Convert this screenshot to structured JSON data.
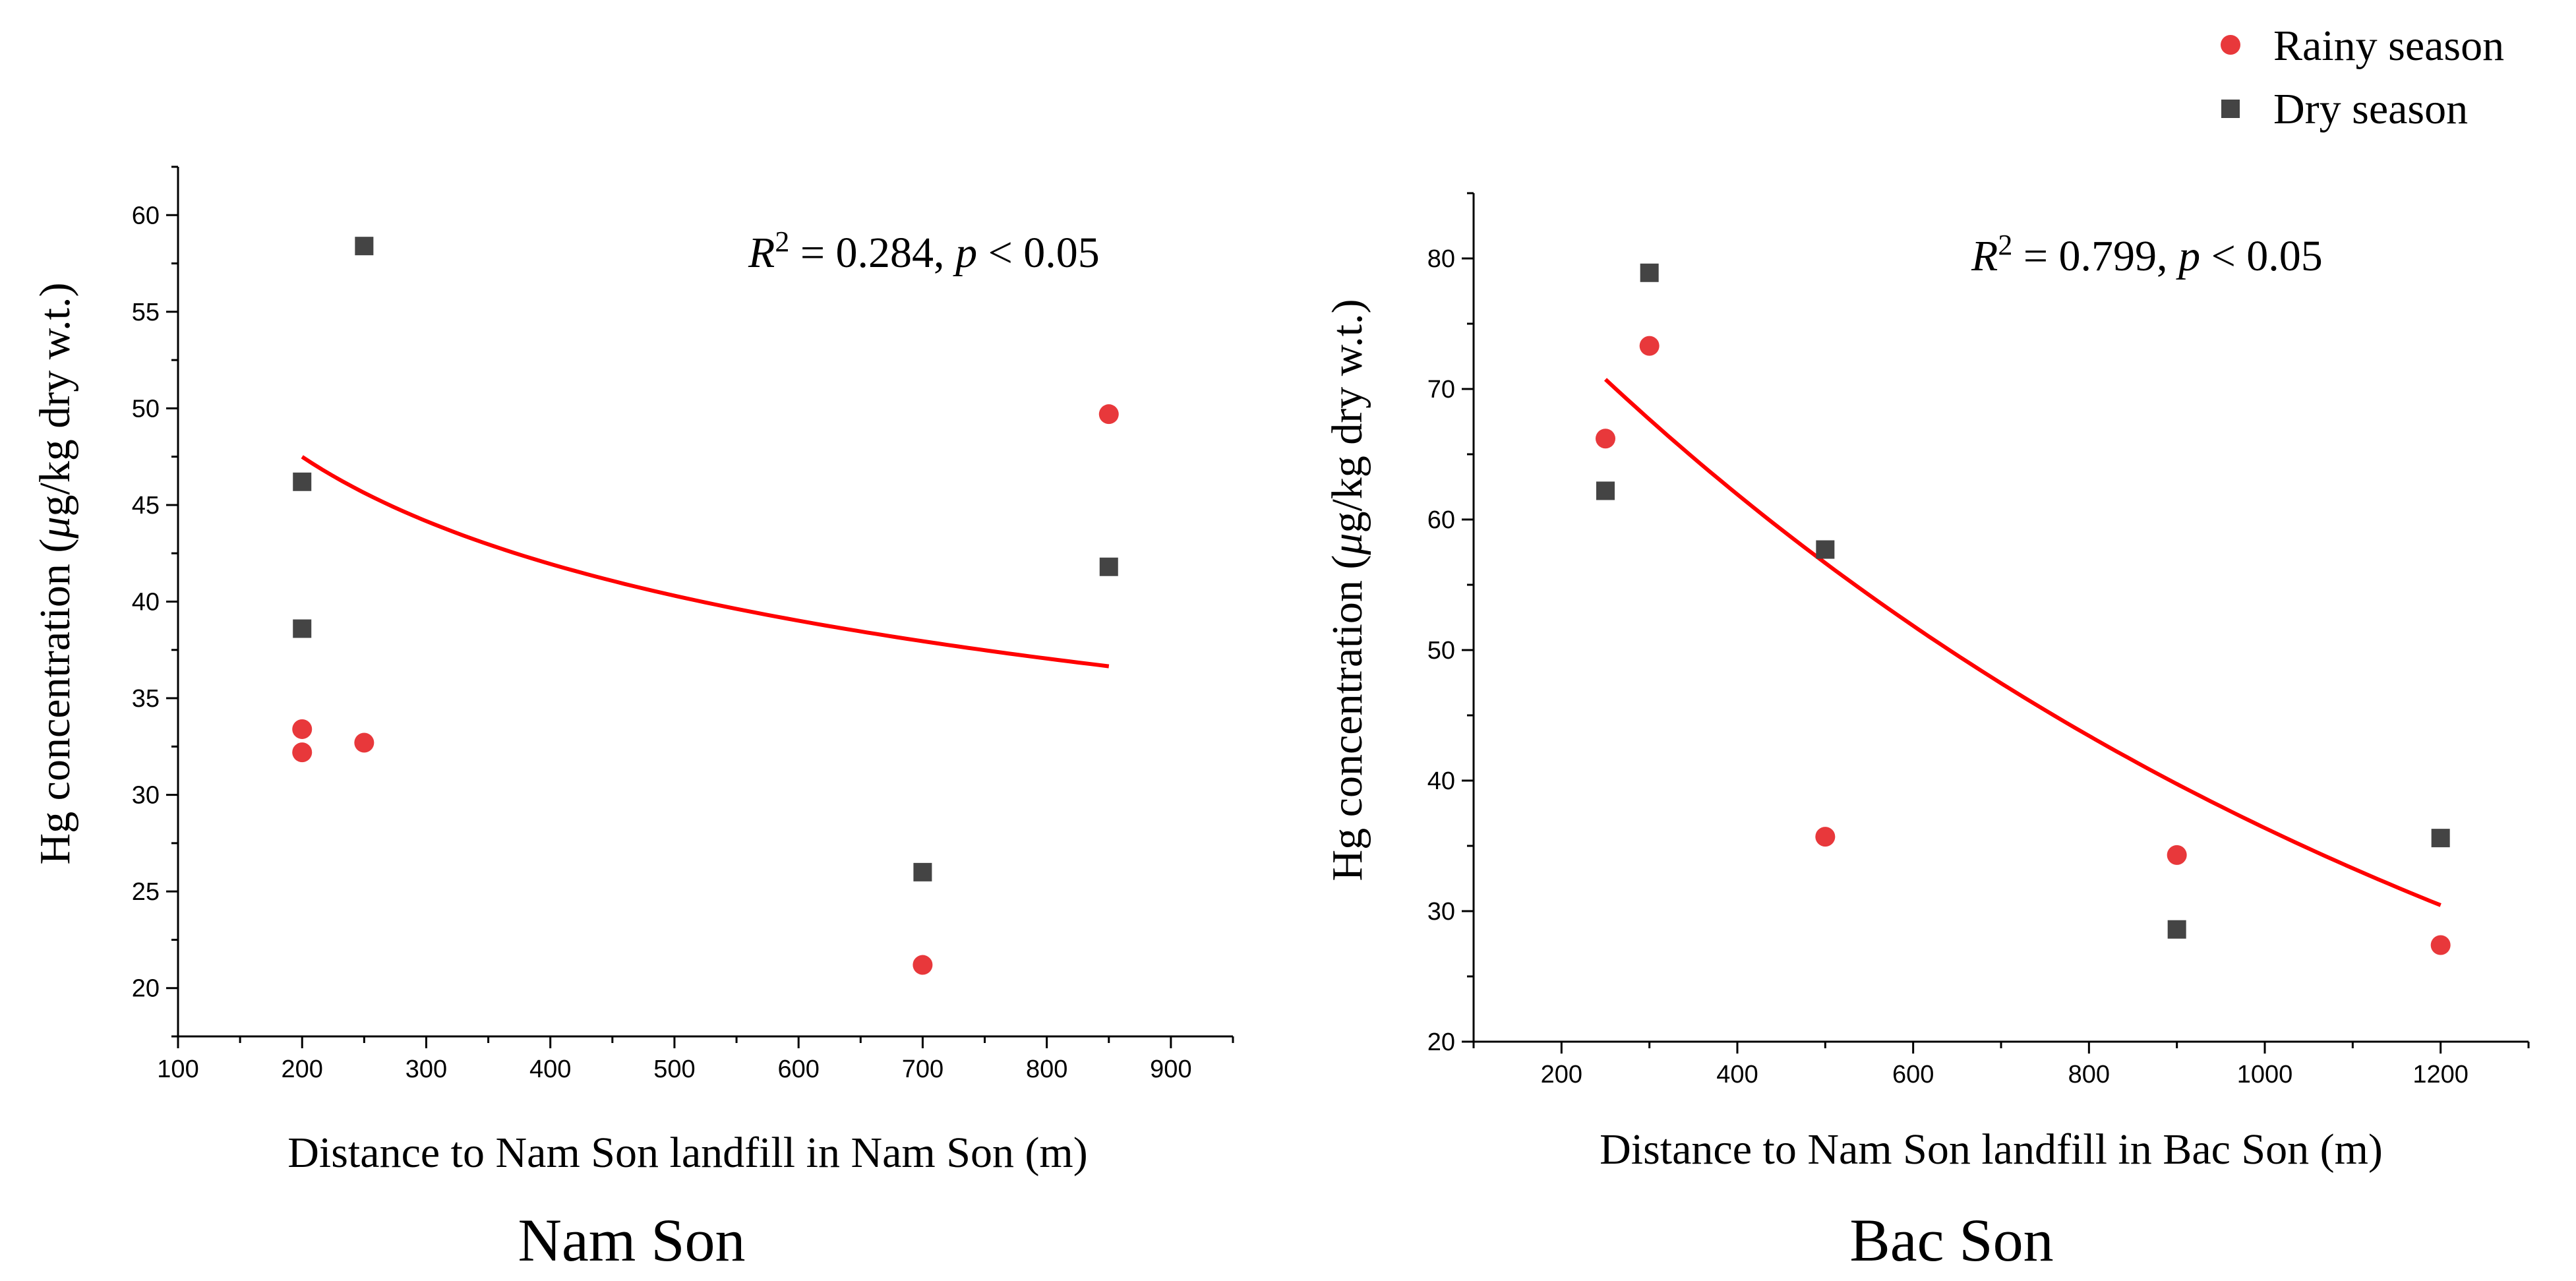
{
  "legend": {
    "placement": "top-right",
    "items": [
      {
        "label": "Rainy season",
        "marker": "circle",
        "color": "#e8383b"
      },
      {
        "label": "Dry season",
        "marker": "square",
        "color": "#444444"
      }
    ]
  },
  "colors": {
    "rainy": "#e8383b",
    "dry": "#444444",
    "fit_line": "#ff0000",
    "axis": "#000000"
  },
  "chart_data": [
    {
      "type": "scatter",
      "caption": "Nam Son",
      "xlabel": "Distance to Nam Son landfill in Nam Son (m)",
      "ylabel_prefix": "Hg concentration (",
      "ylabel_mu": "μ",
      "ylabel_suffix": "g/kg dry w.t.)",
      "annotation": {
        "r2_symbol": "R",
        "r2_exp": "2",
        "r2_text": " = 0.284, ",
        "p_symbol": "p",
        "p_text": " < 0.05"
      },
      "xlim": [
        100,
        950
      ],
      "ylim": [
        17.5,
        62.5
      ],
      "xticks": [
        100,
        200,
        300,
        400,
        500,
        600,
        700,
        800,
        900
      ],
      "yticks": [
        20,
        25,
        30,
        35,
        40,
        45,
        50,
        55,
        60
      ],
      "series": [
        {
          "name": "Rainy season",
          "marker": "circle",
          "points": [
            [
              200,
              32.2
            ],
            [
              200,
              33.4
            ],
            [
              250,
              32.7
            ],
            [
              700,
              21.2
            ],
            [
              850,
              49.7
            ]
          ]
        },
        {
          "name": "Dry season",
          "marker": "square",
          "points": [
            [
              200,
              46.2
            ],
            [
              200,
              38.6
            ],
            [
              250,
              58.4
            ],
            [
              700,
              26.0
            ],
            [
              850,
              41.8
            ]
          ]
        }
      ],
      "fit": {
        "type": "power",
        "a": 122.6,
        "b": -0.179,
        "x_range": [
          200,
          850
        ]
      }
    },
    {
      "type": "scatter",
      "caption": "Bac Son",
      "xlabel": "Distance to Nam Son landfill in Bac Son (m)",
      "ylabel_prefix": "Hg concentration (",
      "ylabel_mu": "μ",
      "ylabel_suffix": "g/kg dry w.t.)",
      "annotation": {
        "r2_symbol": "R",
        "r2_exp": "2",
        "r2_text": " = 0.799, ",
        "p_symbol": "p",
        "p_text": " < 0.05"
      },
      "xlim": [
        100,
        1300
      ],
      "ylim": [
        20,
        85
      ],
      "xticks": [
        200,
        400,
        600,
        800,
        1000,
        1200
      ],
      "yticks": [
        20,
        30,
        40,
        50,
        60,
        70,
        80
      ],
      "series": [
        {
          "name": "Rainy season",
          "marker": "circle",
          "points": [
            [
              250,
              66.2
            ],
            [
              300,
              73.3
            ],
            [
              500,
              35.7
            ],
            [
              900,
              34.3
            ],
            [
              1200,
              27.4
            ]
          ]
        },
        {
          "name": "Dry season",
          "marker": "square",
          "points": [
            [
              250,
              62.2
            ],
            [
              300,
              78.9
            ],
            [
              500,
              57.7
            ],
            [
              900,
              28.6
            ],
            [
              1200,
              35.6
            ]
          ]
        }
      ],
      "fit": {
        "type": "exponential",
        "a": 88.3,
        "b": -0.000887,
        "x_range": [
          250,
          1200
        ]
      }
    }
  ]
}
